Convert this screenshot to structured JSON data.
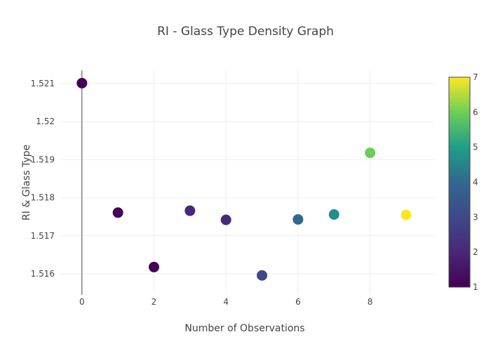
{
  "chart_data": {
    "type": "scatter",
    "title": "RI - Glass Type Density Graph",
    "xlabel": "Number of Observations",
    "ylabel": "RI & Glass Type",
    "xlim": [
      -0.6,
      9.8
    ],
    "ylim": [
      1.51545,
      1.52135
    ],
    "x_ticks": [
      "0",
      "2",
      "4",
      "6",
      "8"
    ],
    "y_ticks": [
      "1.516",
      "1.517",
      "1.518",
      "1.519",
      "1.52",
      "1.521"
    ],
    "grid": true,
    "colorscale": "Viridis",
    "colorbar": {
      "min": 1,
      "max": 7,
      "ticks": [
        "1",
        "2",
        "3",
        "4",
        "5",
        "6",
        "7"
      ]
    },
    "points": [
      {
        "x": 0,
        "y": 1.52101,
        "color_value": 1
      },
      {
        "x": 1,
        "y": 1.51761,
        "color_value": 1.1
      },
      {
        "x": 2,
        "y": 1.51618,
        "color_value": 1.05
      },
      {
        "x": 3,
        "y": 1.51766,
        "color_value": 2
      },
      {
        "x": 4,
        "y": 1.51742,
        "color_value": 2.1
      },
      {
        "x": 5,
        "y": 1.51596,
        "color_value": 3
      },
      {
        "x": 6,
        "y": 1.51743,
        "color_value": 4
      },
      {
        "x": 7,
        "y": 1.51756,
        "color_value": 4.7
      },
      {
        "x": 8,
        "y": 1.51918,
        "color_value": 6
      },
      {
        "x": 9,
        "y": 1.51755,
        "color_value": 7
      }
    ]
  }
}
